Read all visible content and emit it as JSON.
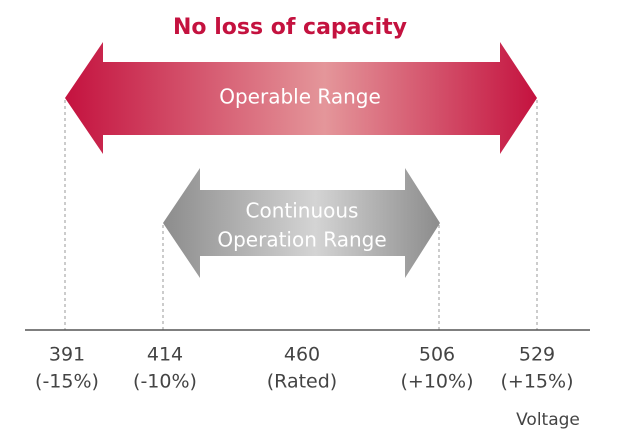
{
  "title": "No loss of capacity",
  "outer_arrow": {
    "label": "Operable Range"
  },
  "inner_arrow": {
    "label_lines": [
      "Continuous",
      "Operation Range"
    ]
  },
  "axis": {
    "ticks": [
      {
        "value": "391",
        "note": "(-15%)"
      },
      {
        "value": "414",
        "note": "(-10%)"
      },
      {
        "value": "460",
        "note": "(Rated)"
      },
      {
        "value": "506",
        "note": "(+10%)"
      },
      {
        "value": "529",
        "note": "(+15%)"
      }
    ],
    "label": "Voltage"
  }
}
